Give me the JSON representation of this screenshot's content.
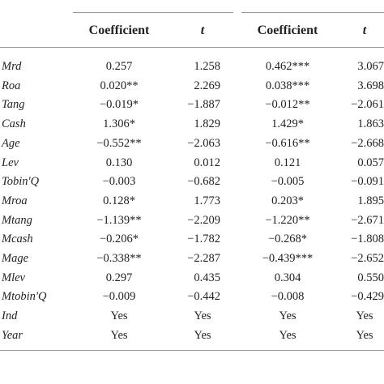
{
  "table": {
    "header": [
      "Coefficient",
      "t",
      "Coefficient",
      "t"
    ],
    "rows": [
      [
        "Mrd",
        "0.257",
        "1.258",
        "0.462***",
        "3.067"
      ],
      [
        "Roa",
        "0.020**",
        "2.269",
        "0.038***",
        "3.698"
      ],
      [
        "Tang",
        "−0.019*",
        "−1.887",
        "−0.012**",
        "−2.061"
      ],
      [
        "Cash",
        "1.306*",
        "1.829",
        "1.429*",
        "1.863"
      ],
      [
        "Age",
        "−0.552**",
        "−2.063",
        "−0.616**",
        "−2.668"
      ],
      [
        "Lev",
        "0.130",
        "0.012",
        "0.121",
        "0.057"
      ],
      [
        "Tobin'Q",
        "−0.003",
        "−0.682",
        "−0.005",
        "−0.091"
      ],
      [
        "Mroa",
        "0.128*",
        "1.773",
        "0.203*",
        "1.895"
      ],
      [
        "Mtang",
        "−1.139**",
        "−2.209",
        "−1.220**",
        "−2.671"
      ],
      [
        "Mcash",
        "−0.206*",
        "−1.782",
        "−0.268*",
        "−1.808"
      ],
      [
        "Mage",
        "−0.338**",
        "−2.287",
        "−0.439***",
        "−2.652"
      ],
      [
        "Mlev",
        "0.297",
        "0.435",
        "0.304",
        "0.550"
      ],
      [
        "Mtobin'Q",
        "−0.009",
        "−0.442",
        "−0.008",
        "−0.429"
      ],
      [
        "Ind",
        "Yes",
        "Yes",
        "Yes",
        "Yes"
      ],
      [
        "Year",
        "Yes",
        "Yes",
        "Yes",
        "Yes"
      ]
    ]
  }
}
